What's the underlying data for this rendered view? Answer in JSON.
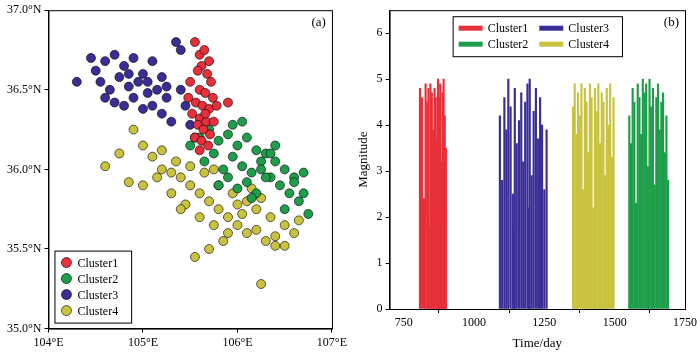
{
  "chart_data": [
    {
      "type": "scatter",
      "title": "(a)",
      "grid": false,
      "legend": "lower left",
      "marker": "circle",
      "xlim": [
        104,
        107
      ],
      "xticks": [
        {
          "value": 104,
          "label": "104°E"
        },
        {
          "value": 105,
          "label": "105°E"
        },
        {
          "value": 106,
          "label": "106°E"
        },
        {
          "value": 107,
          "label": "107°E"
        }
      ],
      "ylim": [
        35,
        37
      ],
      "yticks": [
        {
          "value": 35,
          "label": "35.0°N"
        },
        {
          "value": 35.5,
          "label": "35.5°N"
        },
        {
          "value": 36,
          "label": "36.0°N"
        },
        {
          "value": 36.5,
          "label": "36.5°N"
        },
        {
          "value": 37,
          "label": "37.0°N"
        }
      ],
      "series": [
        {
          "name": "Cluster1",
          "color": "#e8303a",
          "x": [
            105.55,
            105.6,
            105.65,
            105.7,
            105.62,
            105.58,
            105.68,
            105.72,
            105.5,
            105.6,
            105.66,
            105.74,
            105.56,
            105.63,
            105.7,
            105.52,
            105.6,
            105.67,
            105.58,
            105.64,
            105.71,
            105.55,
            105.62,
            105.69,
            105.6,
            105.66,
            105.48,
            105.78,
            105.75,
            105.9
          ],
          "y": [
            36.8,
            36.72,
            36.75,
            36.68,
            36.65,
            36.62,
            36.6,
            36.55,
            36.55,
            36.5,
            36.48,
            36.45,
            36.42,
            36.4,
            36.38,
            36.35,
            36.32,
            36.3,
            36.28,
            36.25,
            36.22,
            36.2,
            36.18,
            36.15,
            36.12,
            36.35,
            36.45,
            36.4,
            36.3,
            36.42
          ]
        },
        {
          "name": "Cluster2",
          "color": "#1e9e4a",
          "x": [
            105.5,
            105.6,
            105.7,
            105.8,
            105.9,
            106.0,
            106.1,
            106.2,
            106.3,
            106.4,
            106.5,
            106.6,
            106.7,
            106.75,
            105.65,
            105.75,
            105.85,
            105.95,
            106.05,
            106.15,
            106.25,
            106.35,
            106.45,
            106.55,
            106.65,
            105.8,
            105.9,
            106.0,
            106.1,
            106.2,
            106.3,
            106.4,
            106.5,
            106.6,
            105.95,
            106.05,
            106.15,
            106.25,
            106.35,
            106.7
          ],
          "y": [
            36.15,
            36.2,
            36.25,
            36.18,
            36.22,
            36.15,
            36.2,
            36.12,
            36.1,
            36.05,
            36.0,
            35.95,
            35.85,
            35.72,
            36.05,
            36.1,
            36.0,
            36.08,
            36.02,
            35.98,
            36.05,
            35.95,
            35.9,
            35.85,
            35.8,
            35.9,
            35.95,
            35.88,
            35.92,
            35.85,
            35.95,
            36.15,
            35.75,
            35.92,
            36.28,
            36.3,
            35.82,
            36.0,
            36.1,
            35.98
          ]
        },
        {
          "name": "Cluster3",
          "color": "#3a2e96",
          "x": [
            104.3,
            104.45,
            104.5,
            104.6,
            104.7,
            104.8,
            104.9,
            105.0,
            105.1,
            105.2,
            105.35,
            105.4,
            104.55,
            104.65,
            104.75,
            104.85,
            104.95,
            105.05,
            105.15,
            105.25,
            104.7,
            104.8,
            104.9,
            105.0,
            105.1,
            105.2,
            105.3,
            105.45,
            105.5,
            105.55,
            104.6,
            104.85,
            105.05,
            105.25,
            105.4
          ],
          "y": [
            36.55,
            36.7,
            36.62,
            36.68,
            36.72,
            36.65,
            36.7,
            36.6,
            36.68,
            36.58,
            36.8,
            36.75,
            36.55,
            36.5,
            36.58,
            36.52,
            36.55,
            36.48,
            36.5,
            36.45,
            36.42,
            36.4,
            36.45,
            36.38,
            36.4,
            36.35,
            36.3,
            36.4,
            36.28,
            36.2,
            36.45,
            36.6,
            36.55,
            36.52,
            36.5
          ]
        },
        {
          "name": "Cluster4",
          "color": "#c9c23f",
          "x": [
            104.6,
            104.75,
            104.9,
            105.0,
            105.1,
            105.2,
            105.3,
            105.4,
            105.5,
            105.6,
            105.7,
            105.8,
            105.9,
            106.0,
            106.1,
            106.2,
            106.3,
            106.4,
            106.5,
            106.6,
            104.85,
            105.0,
            105.15,
            105.3,
            105.45,
            105.6,
            105.75,
            105.9,
            106.05,
            106.2,
            106.35,
            106.5,
            106.65,
            105.2,
            105.35,
            105.5,
            105.65,
            105.8,
            105.95,
            106.1,
            106.25,
            105.55,
            105.7,
            105.85,
            106.0,
            106.15,
            105.4,
            105.75,
            106.25,
            106.4
          ],
          "y": [
            36.02,
            36.1,
            36.25,
            36.15,
            36.08,
            36.0,
            35.98,
            35.95,
            35.9,
            35.85,
            35.8,
            35.75,
            35.7,
            35.65,
            35.6,
            35.62,
            35.55,
            35.58,
            35.52,
            35.6,
            35.92,
            35.9,
            35.95,
            35.85,
            35.78,
            35.7,
            35.65,
            35.6,
            35.72,
            35.75,
            35.7,
            35.65,
            35.68,
            36.12,
            36.05,
            36.02,
            35.98,
            35.9,
            35.85,
            35.8,
            35.82,
            35.45,
            35.5,
            35.55,
            35.78,
            35.88,
            35.75,
            36.0,
            35.28,
            35.52
          ]
        }
      ]
    },
    {
      "type": "bar",
      "title": "(b)",
      "grid": false,
      "legend": "upper center",
      "x_label": "Time/day",
      "y_label": "Magnitude",
      "xlim": [
        700,
        1750
      ],
      "xticks": [
        750,
        1000,
        1250,
        1500,
        1750
      ],
      "ylim": [
        0,
        6.5
      ],
      "yticks": [
        0,
        1,
        2,
        3,
        4,
        5,
        6
      ],
      "series": [
        {
          "name": "Cluster1",
          "color": "#e8303a",
          "x": [
            808,
            815,
            822,
            828,
            834,
            840,
            845,
            850,
            855,
            860,
            864,
            868,
            872,
            876,
            880,
            884,
            888,
            892,
            896,
            900,
            838,
            852,
            866,
            878,
            890
          ],
          "values": [
            4.8,
            4.6,
            2.4,
            4.9,
            4.5,
            1.8,
            4.9,
            4.7,
            3.9,
            4.8,
            4.6,
            2.6,
            5.0,
            4.4,
            4.9,
            3.2,
            4.7,
            5.0,
            4.2,
            3.5,
            4.8,
            2.1,
            3.7,
            4.6,
            1.9
          ]
        },
        {
          "name": "Cluster2",
          "color": "#1e9e4a",
          "x": [
            1552,
            1558,
            1564,
            1570,
            1576,
            1582,
            1588,
            1594,
            1600,
            1606,
            1612,
            1618,
            1624,
            1630,
            1636,
            1642,
            1648,
            1654,
            1660,
            1666,
            1672,
            1678,
            1684,
            1690,
            1620
          ],
          "values": [
            4.2,
            3.6,
            4.8,
            4.5,
            2.3,
            4.9,
            4.6,
            3.8,
            5.0,
            4.7,
            4.9,
            3.1,
            5.0,
            4.4,
            4.8,
            2.7,
            4.6,
            4.9,
            3.9,
            4.5,
            4.7,
            3.4,
            4.2,
            2.8,
            1.6
          ]
        },
        {
          "name": "Cluster3",
          "color": "#3a2e96",
          "x": [
            1092,
            1100,
            1108,
            1115,
            1122,
            1130,
            1138,
            1145,
            1152,
            1160,
            1168,
            1175,
            1182,
            1190,
            1198,
            1205,
            1212,
            1220,
            1228,
            1235,
            1242,
            1250,
            1258,
            1142,
            1196
          ],
          "values": [
            4.2,
            2.8,
            4.6,
            3.9,
            5.0,
            4.4,
            2.5,
            4.8,
            3.6,
            4.1,
            4.7,
            3.2,
            4.5,
            4.9,
            5.0,
            2.9,
            4.3,
            4.8,
            3.7,
            4.6,
            4.0,
            2.6,
            3.9,
            1.8,
            2.2
          ]
        },
        {
          "name": "Cluster4",
          "color": "#c9c23f",
          "x": [
            1352,
            1358,
            1364,
            1370,
            1376,
            1382,
            1388,
            1394,
            1400,
            1406,
            1412,
            1418,
            1424,
            1430,
            1436,
            1442,
            1448,
            1454,
            1460,
            1466,
            1472,
            1478,
            1484,
            1490,
            1496
          ],
          "values": [
            4.4,
            4.9,
            3.8,
            4.7,
            4.2,
            4.9,
            2.6,
            4.8,
            4.5,
            3.4,
            4.9,
            4.6,
            2.2,
            4.8,
            4.3,
            4.9,
            3.6,
            4.7,
            4.5,
            2.9,
            4.8,
            4.0,
            4.9,
            3.3,
            4.6
          ]
        }
      ]
    }
  ]
}
